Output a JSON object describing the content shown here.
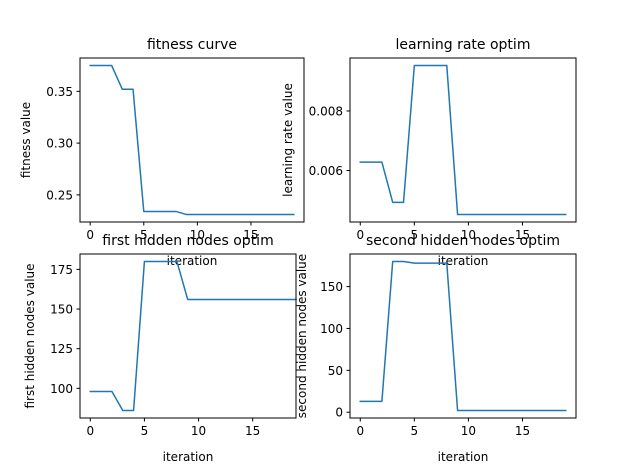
{
  "figure": {
    "background": "#ffffff",
    "line_color": "#1f77b4"
  },
  "chart_data": [
    {
      "type": "line",
      "title": "fitness curve",
      "xlabel": "iteration",
      "ylabel": "fitness value",
      "x": [
        0,
        1,
        2,
        3,
        4,
        5,
        6,
        7,
        8,
        9,
        10,
        11,
        12,
        13,
        14,
        15,
        16,
        17,
        18,
        19
      ],
      "series": [
        {
          "values": [
            0.375,
            0.375,
            0.375,
            0.352,
            0.352,
            0.234,
            0.234,
            0.234,
            0.234,
            0.231,
            0.231,
            0.231,
            0.231,
            0.231,
            0.231,
            0.231,
            0.231,
            0.231,
            0.231,
            0.231
          ]
        }
      ],
      "xlim": [
        -0.95,
        19.95
      ],
      "ylim": [
        0.2238,
        0.3822
      ],
      "xticks": [
        0,
        5,
        10,
        15
      ],
      "xtick_labels": [
        "0",
        "5",
        "10",
        "15"
      ],
      "yticks": [
        0.25,
        0.3,
        0.35
      ],
      "ytick_labels": [
        "0.25",
        "0.30",
        "0.35"
      ],
      "grid": false
    },
    {
      "type": "line",
      "title": "learning rate optim",
      "xlabel": "iteration",
      "ylabel": "learning rate value",
      "x": [
        0,
        1,
        2,
        3,
        4,
        5,
        6,
        7,
        8,
        9,
        10,
        11,
        12,
        13,
        14,
        15,
        16,
        17,
        18,
        19
      ],
      "series": [
        {
          "values": [
            0.00628,
            0.00628,
            0.00628,
            0.00493,
            0.00493,
            0.00953,
            0.00953,
            0.00953,
            0.00953,
            0.00452,
            0.00452,
            0.00452,
            0.00452,
            0.00452,
            0.00452,
            0.00452,
            0.00452,
            0.00452,
            0.00452,
            0.00452
          ]
        }
      ],
      "xlim": [
        -0.95,
        19.95
      ],
      "ylim": [
        0.00427,
        0.00978
      ],
      "xticks": [
        0,
        5,
        10,
        15
      ],
      "xtick_labels": [
        "0",
        "5",
        "10",
        "15"
      ],
      "yticks": [
        0.006,
        0.008
      ],
      "ytick_labels": [
        "0.006",
        "0.008"
      ],
      "grid": false
    },
    {
      "type": "line",
      "title": "first hidden nodes optim",
      "xlabel": "iteration",
      "ylabel": "first hidden nodes value",
      "x": [
        0,
        1,
        2,
        3,
        4,
        5,
        6,
        7,
        8,
        9,
        10,
        11,
        12,
        13,
        14,
        15,
        16,
        17,
        18,
        19
      ],
      "series": [
        {
          "values": [
            98,
            98,
            98,
            86,
            86,
            180,
            180,
            180,
            180,
            156,
            156,
            156,
            156,
            156,
            156,
            156,
            156,
            156,
            156,
            156
          ]
        }
      ],
      "xlim": [
        -0.95,
        19.0
      ],
      "ylim": [
        81.3,
        184.7
      ],
      "xticks": [
        0,
        5,
        10,
        15
      ],
      "xtick_labels": [
        "0",
        "5",
        "10",
        "15"
      ],
      "yticks": [
        100,
        125,
        150,
        175
      ],
      "ytick_labels": [
        "100",
        "125",
        "150",
        "175"
      ],
      "grid": false
    },
    {
      "type": "line",
      "title": "second hidden nodes optim",
      "xlabel": "iteration",
      "ylabel": "second hidden nodes value",
      "x": [
        0,
        1,
        2,
        3,
        4,
        5,
        6,
        7,
        8,
        9,
        10,
        11,
        12,
        13,
        14,
        15,
        16,
        17,
        18,
        19
      ],
      "series": [
        {
          "values": [
            13,
            13,
            13,
            180,
            180,
            178,
            178,
            178,
            178,
            2,
            2,
            2,
            2,
            2,
            2,
            2,
            2,
            2,
            2,
            2
          ]
        }
      ],
      "xlim": [
        -0.95,
        19.95
      ],
      "ylim": [
        -6.9,
        188.9
      ],
      "xticks": [
        0,
        5,
        10,
        15
      ],
      "xtick_labels": [
        "0",
        "5",
        "10",
        "15"
      ],
      "yticks": [
        0,
        50,
        100,
        150
      ],
      "ytick_labels": [
        "0",
        "50",
        "100",
        "150"
      ],
      "grid": false
    }
  ]
}
